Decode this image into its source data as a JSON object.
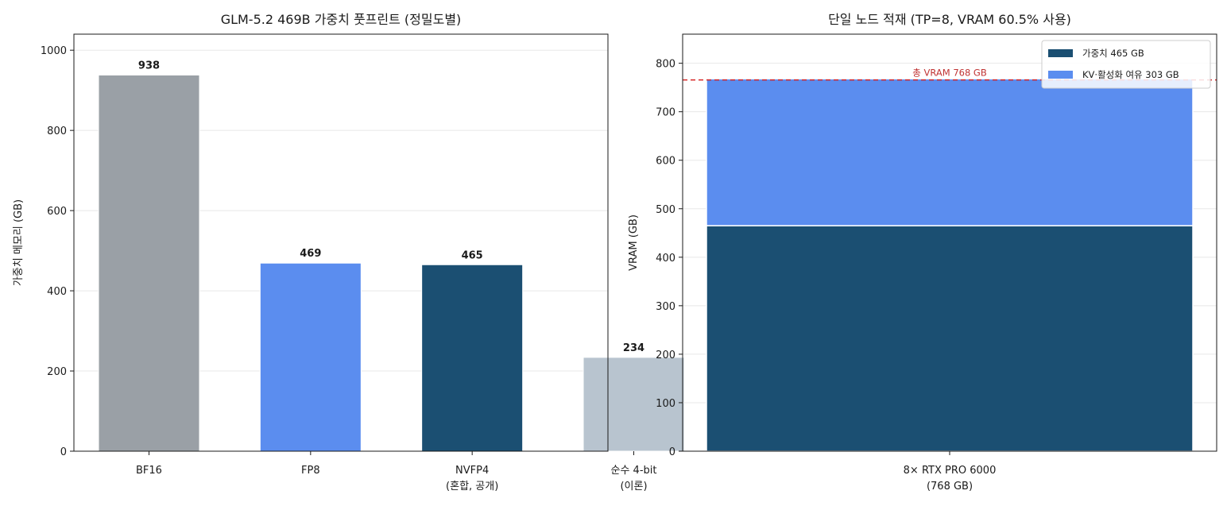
{
  "chart_data": [
    {
      "type": "bar",
      "title": "GLM-5.2 469B 가중치 풋프린트 (정밀도별)",
      "ylabel": "가중치 메모리 (GB)",
      "xlabel": "",
      "ylim": [
        0,
        1040
      ],
      "yticks": [
        "0",
        "200",
        "400",
        "600",
        "800",
        "1000"
      ],
      "grid": true,
      "categories": [
        {
          "line1": "BF16",
          "line2": ""
        },
        {
          "line1": "FP8",
          "line2": ""
        },
        {
          "line1": "NVFP4",
          "line2": "(혼합, 공개)"
        },
        {
          "line1": "순수 4-bit",
          "line2": "(이론)"
        }
      ],
      "values": [
        938,
        469,
        465,
        234
      ],
      "value_labels": [
        "938",
        "469",
        "465",
        "234"
      ],
      "colors": [
        "#9aa0a6",
        "#5b8def",
        "#1b4f72",
        "#b8c4cf"
      ]
    },
    {
      "type": "bar",
      "stacked": true,
      "title": "단일 노드 적재 (TP=8, VRAM 60.5% 사용)",
      "ylabel": "VRAM (GB)",
      "xlabel": "",
      "ylim": [
        0,
        860
      ],
      "yticks": [
        "0",
        "100",
        "200",
        "300",
        "400",
        "500",
        "600",
        "700",
        "800"
      ],
      "grid": true,
      "categories": [
        {
          "line1": "8× RTX PRO 6000",
          "line2": "(768 GB)"
        }
      ],
      "series": [
        {
          "name": "가중치 465 GB",
          "values": [
            465
          ],
          "color": "#1b4f72"
        },
        {
          "name": "KV·활성화 여유 303 GB",
          "values": [
            303
          ],
          "color": "#5b8def"
        }
      ],
      "reference_line": {
        "value": 768,
        "label": "총 VRAM 768 GB",
        "color": "#d62728"
      },
      "legend": "top-right"
    }
  ]
}
